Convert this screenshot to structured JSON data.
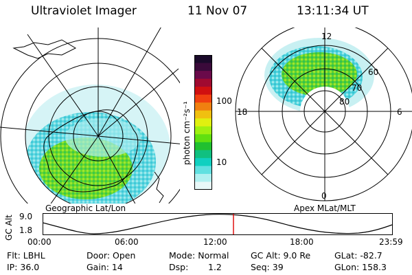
{
  "header": {
    "instrument": "Ultraviolet Imager",
    "date": "11 Nov 07",
    "time": "13:11:34 UT"
  },
  "left_panel": {
    "caption": "Geographic Lat/Lon"
  },
  "colorbar": {
    "label": "photon cm⁻²s⁻¹",
    "ticks": [
      "100",
      "10"
    ],
    "colors": [
      "#1a0a2a",
      "#3a0a3a",
      "#6a0a4a",
      "#a00a30",
      "#d01010",
      "#f04010",
      "#f08010",
      "#f0c010",
      "#e0f010",
      "#a0f010",
      "#60e010",
      "#20c030",
      "#10c080",
      "#10d0c0",
      "#60e0e0",
      "#b0f0f0",
      "#e8f8f8"
    ]
  },
  "right_panel": {
    "caption": "Apex MLat/MLT",
    "mlt_labels": {
      "top": "12",
      "left": "18",
      "right": "6",
      "bottom": "0"
    },
    "lat_labels": [
      "60",
      "70",
      "80"
    ]
  },
  "altitude_strip": {
    "ylabel": "GC Alt",
    "ymax": "9.0",
    "ymin": "1.8",
    "xticks": [
      "00:00",
      "06:00",
      "12:00",
      "18:00",
      "23:59"
    ],
    "marker_color": "#dd0000"
  },
  "info": {
    "flt": "Flt: LBHL",
    "ip": "IP: 36.0",
    "door": "Door: Open",
    "gain": "Gain: 14",
    "mode": "Mode: Normal",
    "dsp_label": "Dsp:",
    "dsp_value": "1.2",
    "gcalt": "GC Alt: 9.0 Re",
    "seq": "Seq: 39",
    "glat": "GLat: -82.7",
    "glon": "GLon: 158.3"
  }
}
